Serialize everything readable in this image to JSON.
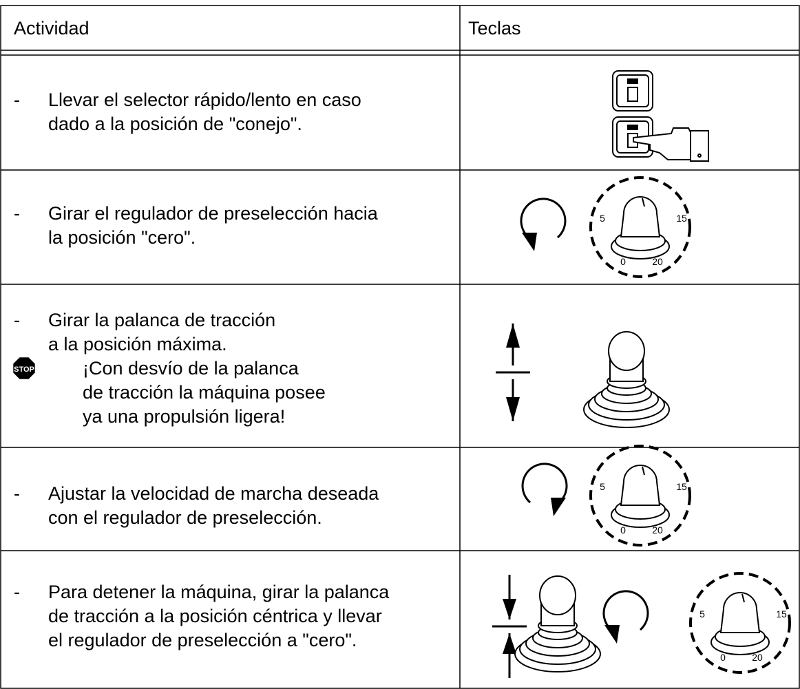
{
  "table": {
    "header": [
      "Actividad",
      "Teclas"
    ],
    "rows": [
      {
        "bullet": "-",
        "lines": [
          "Llevar el selector rápido/lento en caso",
          "dado a la posición de \"conejo\"."
        ]
      },
      {
        "bullet": "-",
        "lines": [
          "Girar el regulador de preselección hacia",
          "la posición \"cero\"."
        ]
      },
      {
        "bullet": "-",
        "lines": [
          "Girar la palanca de tracción",
          "a la posición máxima."
        ],
        "note": [
          "¡Con desvío de la palanca",
          "de tracción la máquina posee",
          "ya una propulsión ligera!"
        ]
      },
      {
        "bullet": "-",
        "lines": [
          "Ajustar la velocidad de marcha deseada",
          "con el regulador de preselección."
        ]
      },
      {
        "bullet": "-",
        "lines": [
          "Para detener la máquina, girar la palanca",
          "de tracción a la posición céntrica y llevar",
          "el regulador de preselección a \"cero\"."
        ]
      }
    ]
  },
  "stop_label": "STOP",
  "dial_labels": [
    "5",
    "15",
    "0",
    "20"
  ]
}
